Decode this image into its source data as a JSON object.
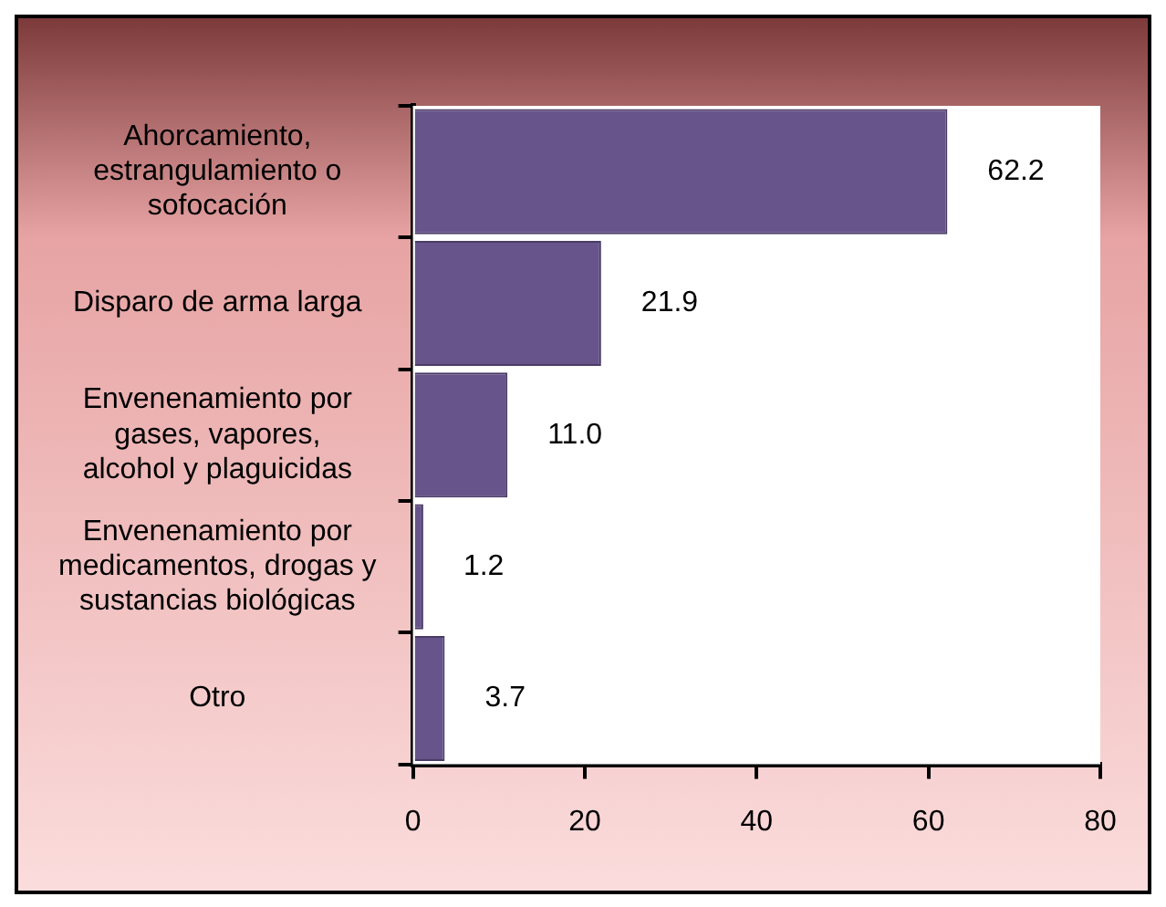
{
  "chart_data": {
    "type": "bar",
    "orientation": "horizontal",
    "categories": [
      "Ahorcamiento, estrangulamiento o sofocación",
      "Disparo de arma larga",
      "Envenenamiento por gases, vapores, alcohol y plaguicidas",
      "Envenenamiento por medicamentos, drogas y sustancias biológicas",
      "Otro"
    ],
    "values": [
      62.2,
      21.9,
      11.0,
      1.2,
      3.7
    ],
    "value_labels": [
      "62.2",
      "21.9",
      "11.0",
      "1.2",
      "3.7"
    ],
    "color": "#67548a",
    "xlim": [
      0,
      80
    ],
    "xticks": [
      0,
      20,
      40,
      60,
      80
    ],
    "grid": false,
    "legend": false
  }
}
